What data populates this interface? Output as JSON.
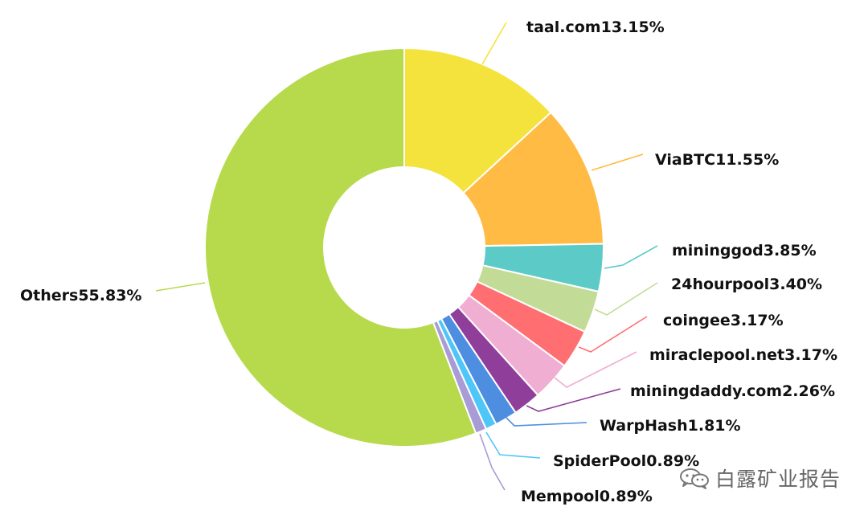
{
  "chart_data": {
    "type": "pie",
    "style": "donut",
    "title": "",
    "slices": [
      {
        "label": "taal.com",
        "value": 13.15,
        "value_text": "13.15%",
        "color": "#f5e33d"
      },
      {
        "label": "ViaBTC",
        "value": 11.55,
        "value_text": "11.55%",
        "color": "#ffbb44"
      },
      {
        "label": "mininggod",
        "value": 3.85,
        "value_text": "3.85%",
        "color": "#5ccbc8"
      },
      {
        "label": "24hourpool",
        "value": 3.4,
        "value_text": "3.40%",
        "color": "#c2dc98"
      },
      {
        "label": "coingee",
        "value": 3.17,
        "value_text": "3.17%",
        "color": "#ff6f71"
      },
      {
        "label": "miraclepool.net",
        "value": 3.17,
        "value_text": "3.17%",
        "color": "#efaed2"
      },
      {
        "label": "miningdaddy.com",
        "value": 2.26,
        "value_text": "2.26%",
        "color": "#8f3f9a"
      },
      {
        "label": "WarpHash",
        "value": 1.81,
        "value_text": "1.81%",
        "color": "#4d8ee0"
      },
      {
        "label": "SpiderPool",
        "value": 0.89,
        "value_text": "0.89%",
        "color": "#4fc6f8"
      },
      {
        "label": "Mempool",
        "value": 0.89,
        "value_text": "0.89%",
        "color": "#a89bd6"
      },
      {
        "label": "Others",
        "value": 55.83,
        "value_text": "55.83%",
        "color": "#b7da4c"
      }
    ]
  },
  "watermark": {
    "text": "白露矿业报告",
    "icon": "wechat-icon"
  }
}
